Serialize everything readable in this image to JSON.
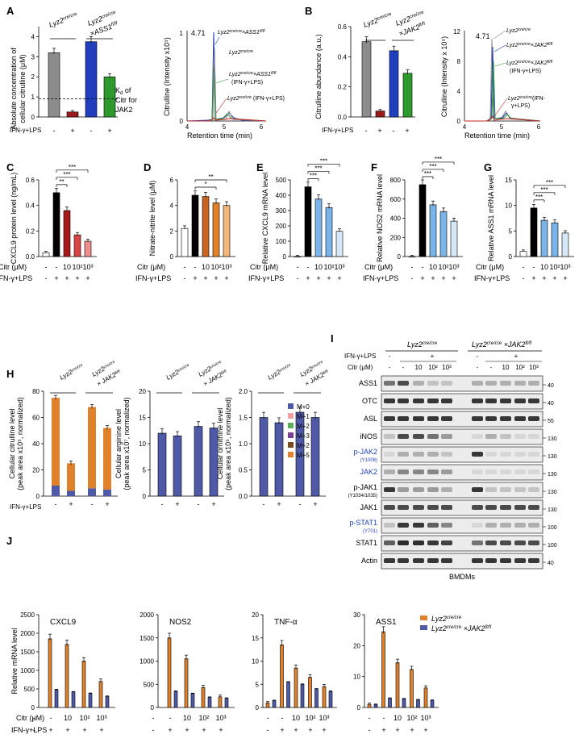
{
  "colors": {
    "black": "#000000",
    "gray": "#8c8c8c",
    "darkred": "#9b1b1b",
    "blue": "#1f3fbf",
    "green": "#2c9a2c",
    "lightblue": "#79b5e8",
    "paleblue": "#d6e8f8",
    "orange": "#e0812c",
    "lightorange": "#f4b67a",
    "darkorange": "#c9651f",
    "red1": "#a81a1a",
    "red2": "#d84444",
    "red3": "#f08c8c",
    "jak": "#4e5aa8"
  },
  "common": {
    "ifn_lps": "IFN-γ+LPS",
    "citr_um": "Citr (μM)",
    "minus": "-",
    "plus": "+",
    "d10": "10",
    "d100": "10²",
    "d1000": "10³",
    "lyz2": "Lyz2",
    "cre": "cre/cre",
    "flfl": "fl/fl",
    "x": "×",
    "ass1": "ASS1",
    "jak2": "JAK2",
    "bmdms": "BMDMs",
    "retention": "Retention time (min)",
    "peak": "4.71",
    "ifn_paren": "(IFN-γ+LPS)"
  },
  "panel_letters": [
    "A",
    "B",
    "C",
    "D",
    "E",
    "F",
    "G",
    "H",
    "I",
    "J"
  ],
  "panelA": {
    "ylabel1": "Absolute concentration of",
    "ylabel2": "cellular citrulline (μM)",
    "yticks": [
      "0",
      "1",
      "2",
      "3",
      "4"
    ],
    "kd1": "K",
    "kd1sub": "d",
    "kd2": " of",
    "kd3": "Citr for",
    "kd4": "JAK2",
    "ylabel_chrom": "Citrulline (Intensity x10⁵)",
    "chrom_yticks": [
      "0",
      "1"
    ],
    "xticks": [
      "4",
      "5",
      "6"
    ]
  },
  "panelB": {
    "ylabel": "Citrulline abundance (a.u.)",
    "yticks": [
      "0.0",
      "0.2",
      "0.4",
      "0.6"
    ],
    "chrom_yticks": [
      "0",
      "4",
      "8",
      "12"
    ],
    "ylabel_chrom": "Citrulline (Intensity x 10⁵)",
    "xticks": [
      "4",
      "5",
      "6"
    ],
    "ifn_paren_split1": "(IFN-",
    "ifn_paren_split2": "LPS)"
  },
  "panelC": {
    "ylabel": "CXCL9 protein level (ng/mL)",
    "yticks": [
      "0.0",
      "0.2",
      "0.4",
      "0.6"
    ],
    "sig": [
      "**",
      "***",
      "***"
    ]
  },
  "panelD": {
    "ylabel": "Nitrate-nitrite level (μM)",
    "yticks": [
      "0",
      "2",
      "4",
      "6"
    ],
    "sig": [
      "*",
      "**"
    ]
  },
  "panelE": {
    "ylabel": "Relative CXCL9 mRNA level",
    "yticks": [
      "0",
      "100",
      "200",
      "300",
      "400",
      "500"
    ],
    "sig": [
      "***",
      "***",
      "***"
    ]
  },
  "panelF": {
    "ylabel": "Relative NOS2 mRNA level",
    "yticks": [
      "0",
      "200",
      "400",
      "600",
      "800"
    ],
    "sig": [
      "***",
      "***",
      "***"
    ]
  },
  "panelG": {
    "ylabel": "Relative ASS1 mRNA level",
    "yticks": [
      "0",
      "5",
      "10",
      "15"
    ],
    "sig": [
      "***",
      "***",
      "***"
    ]
  },
  "panelH": {
    "ylab1a": "Cellular citrulline level",
    "ylab1b": "(peak area x10⁵, normalized)",
    "ylab2a": "Cellular arginine level",
    "ylab2b": "(peak area x10⁷, normalized)",
    "ylab3a": "Cellular ornithine level",
    "ylab3b": "(peak area x10⁵, normalized)",
    "yt1": [
      "0",
      "20",
      "40",
      "60",
      "80"
    ],
    "yt2": [
      "0",
      "5",
      "10",
      "15",
      "20"
    ],
    "yt3": [
      "0.0",
      "0.5",
      "1.0",
      "1.5",
      "2.0"
    ],
    "legend": [
      "M+0",
      "M+1",
      "M+2",
      "M+3",
      "M+2",
      "M+5"
    ]
  },
  "panelI": {
    "rows": [
      "ASS1",
      "OTC",
      "ASL",
      "iNOS",
      "p-JAK2",
      "JAK2",
      "p-JAK1",
      "JAK1",
      "p-STAT1",
      "STAT1",
      "Actin"
    ],
    "sub_pjak2": "(Y1008)",
    "sub_pjak1": "(Y1034/1035)",
    "sub_pstat1": "(Y701)",
    "mw": [
      "40",
      "40",
      "55",
      "130",
      "130",
      "130",
      "130",
      "130",
      "100",
      "100",
      "40"
    ]
  },
  "panelJ": {
    "ylabel": "Relative mRNA level",
    "titles": [
      "CXCL9",
      "NOS2",
      "TNF-α",
      "ASS1"
    ],
    "yt1": [
      "0",
      "500",
      "1000",
      "1500",
      "2000",
      "2500"
    ],
    "yt2": [
      "0",
      "500",
      "1000",
      "1500",
      "2000"
    ],
    "yt3": [
      "0",
      "5",
      "10",
      "15",
      "20"
    ],
    "yt4": [
      "0",
      "10",
      "20",
      "30"
    ],
    "leg1": "Lyz2",
    "leg2": "Lyz2"
  },
  "chart_data": [
    {
      "panel": "A-bar",
      "type": "bar",
      "categories": [
        "Lyz2 cre/cre -",
        "Lyz2 cre/cre +",
        "×ASS1 fl/fl -",
        "×ASS1 fl/fl +"
      ],
      "values": [
        3.2,
        0.25,
        3.75,
        2.0
      ],
      "ylim": [
        0,
        4.5
      ],
      "kd_line": 0.9
    },
    {
      "panel": "B-bar",
      "type": "bar",
      "categories": [
        "Lyz2 cre/cre -",
        "Lyz2 cre/cre +",
        "×JAK2 fl/fl -",
        "×JAK2 fl/fl +"
      ],
      "values": [
        0.5,
        0.04,
        0.44,
        0.29
      ],
      "ylim": [
        0,
        0.6
      ]
    },
    {
      "panel": "C",
      "type": "bar",
      "categories": [
        "-/-",
        "-/+",
        "10",
        "10²",
        "10³"
      ],
      "values": [
        0.03,
        0.5,
        0.36,
        0.17,
        0.12
      ],
      "ylim": [
        0,
        0.6
      ]
    },
    {
      "panel": "D",
      "type": "bar",
      "categories": [
        "-/-",
        "-/+",
        "10",
        "10²",
        "10³"
      ],
      "values": [
        2.2,
        4.8,
        4.7,
        4.2,
        4.0
      ],
      "ylim": [
        0,
        6
      ]
    },
    {
      "panel": "E",
      "type": "bar",
      "categories": [
        "-/-",
        "-/+",
        "10",
        "10²",
        "10³"
      ],
      "values": [
        0,
        455,
        375,
        320,
        165
      ],
      "ylim": [
        0,
        500
      ]
    },
    {
      "panel": "F",
      "type": "bar",
      "categories": [
        "-/-",
        "-/+",
        "10",
        "10²",
        "10³"
      ],
      "values": [
        0,
        750,
        540,
        470,
        370
      ],
      "ylim": [
        0,
        800
      ]
    },
    {
      "panel": "G",
      "type": "bar",
      "categories": [
        "-/-",
        "-/+",
        "10",
        "10²",
        "10³"
      ],
      "values": [
        1,
        9.5,
        7.1,
        6.6,
        4.6
      ],
      "ylim": [
        0,
        15
      ]
    },
    {
      "panel": "H-citrulline",
      "type": "bar",
      "categories": [
        "cre -",
        "cre +",
        "JAK2 -",
        "JAK2 +"
      ],
      "series": [
        {
          "name": "M+0",
          "values": [
            8,
            4,
            6,
            5
          ]
        },
        {
          "name": "M+5",
          "values": [
            67,
            21,
            62,
            47
          ]
        }
      ],
      "ylim": [
        0,
        80
      ]
    },
    {
      "panel": "H-arginine",
      "type": "bar",
      "categories": [
        "cre -",
        "cre +",
        "JAK2 -",
        "JAK2 +"
      ],
      "values": [
        12,
        11.5,
        13.3,
        13
      ],
      "ylim": [
        0,
        20
      ]
    },
    {
      "panel": "H-ornithine",
      "type": "bar",
      "categories": [
        "cre -",
        "cre +",
        "JAK2 -",
        "JAK2 +"
      ],
      "values": [
        1.5,
        1.4,
        1.6,
        1.5
      ],
      "ylim": [
        0,
        2
      ]
    },
    {
      "panel": "J-CXCL9",
      "type": "bar",
      "series": [
        {
          "name": "Lyz2 cre/cre",
          "values": [
            1850,
            1700,
            1250,
            700
          ]
        },
        {
          "name": "×JAK2 fl/fl",
          "values": [
            480,
            420,
            380,
            300
          ]
        }
      ],
      "ylim": [
        0,
        2500
      ]
    },
    {
      "panel": "J-NOS2",
      "type": "bar",
      "series": [
        {
          "name": "Lyz2 cre/cre",
          "values": [
            1500,
            1050,
            430,
            230
          ]
        },
        {
          "name": "×JAK2 fl/fl",
          "values": [
            350,
            300,
            220,
            200
          ]
        }
      ],
      "ylim": [
        0,
        2000
      ]
    },
    {
      "panel": "J-TNF",
      "type": "bar",
      "series": [
        {
          "name": "Lyz2 cre/cre",
          "values": [
            1,
            13.5,
            8.5,
            6.5,
            4.5
          ]
        },
        {
          "name": "×JAK2 fl/fl",
          "values": [
            1.5,
            5.5,
            5,
            4,
            3.5
          ]
        }
      ],
      "ylim": [
        0,
        20
      ]
    },
    {
      "panel": "J-ASS1",
      "type": "bar",
      "series": [
        {
          "name": "Lyz2 cre/cre",
          "values": [
            1,
            24.5,
            14.5,
            12.3,
            6.3
          ]
        },
        {
          "name": "×JAK2 fl/fl",
          "values": [
            1,
            3,
            2.8,
            2.5,
            2.3
          ]
        }
      ],
      "ylim": [
        0,
        30
      ]
    }
  ]
}
